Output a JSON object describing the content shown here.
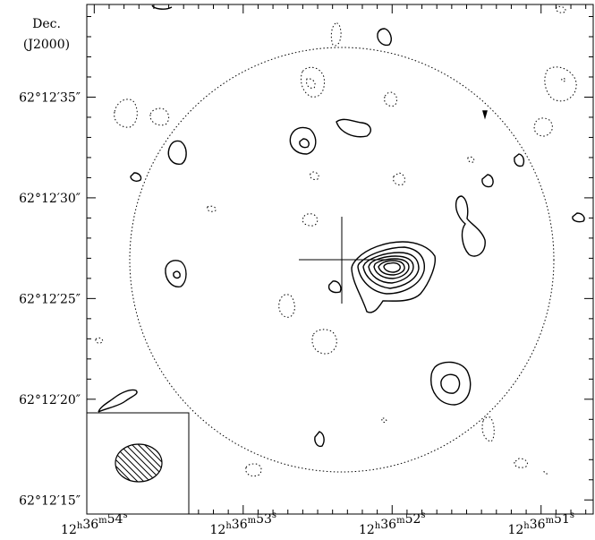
{
  "axis": {
    "y_title_line1": "Dec.",
    "y_title_line2": "(J2000)"
  },
  "chart_data": {
    "type": "contour",
    "y_ticks": [
      {
        "label": "62°12′35″",
        "arcsec": 35
      },
      {
        "label": "62°12′30″",
        "arcsec": 30
      },
      {
        "label": "62°12′25″",
        "arcsec": 25
      },
      {
        "label": "62°12′20″",
        "arcsec": 20
      },
      {
        "label": "62°12′15″",
        "arcsec": 15
      }
    ],
    "x_ticks": [
      {
        "h": "12",
        "m": "36",
        "s": "54",
        "sec": 54
      },
      {
        "h": "12",
        "m": "36",
        "s": "53",
        "sec": 53
      },
      {
        "h": "12",
        "m": "36",
        "s": "52",
        "sec": 52
      },
      {
        "h": "12",
        "m": "36",
        "s": "51",
        "sec": 51
      }
    ],
    "x_range_sec": [
      54.05,
      50.65
    ],
    "y_range_arcsec": [
      14.3,
      39.6
    ],
    "features": [
      "primary-beam-circle",
      "source-contours",
      "cross-marker",
      "beam-inset"
    ]
  }
}
